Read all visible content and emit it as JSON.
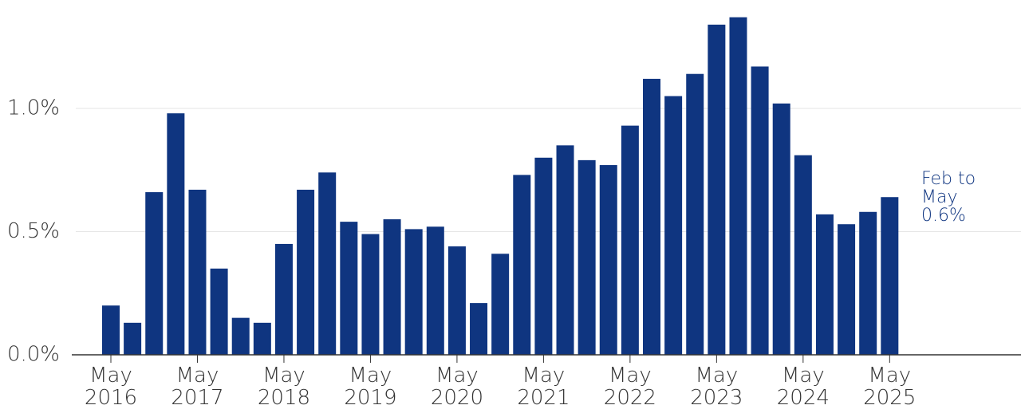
{
  "chart_data": {
    "type": "bar",
    "categories": [
      "May 2016",
      null,
      null,
      null,
      "May 2017",
      null,
      null,
      null,
      "May 2018",
      null,
      null,
      null,
      "May 2019",
      null,
      null,
      null,
      "May 2020",
      null,
      null,
      null,
      "May 2021",
      null,
      null,
      null,
      "May 2022",
      null,
      null,
      null,
      "May 2023",
      null,
      null,
      null,
      "May 2024",
      null,
      null,
      null,
      "May 2025"
    ],
    "values": [
      0.2,
      0.13,
      0.66,
      0.98,
      0.67,
      0.35,
      0.15,
      0.13,
      0.45,
      0.67,
      0.74,
      0.54,
      0.49,
      0.55,
      0.51,
      0.52,
      0.44,
      0.21,
      0.41,
      0.73,
      0.8,
      0.85,
      0.79,
      0.77,
      0.93,
      1.12,
      1.05,
      1.14,
      1.34,
      1.37,
      1.17,
      1.02,
      0.81,
      0.57,
      0.53,
      0.58,
      0.64
    ],
    "color": "#0f3580",
    "ylim": [
      0,
      1.44
    ],
    "yticks": [
      {
        "value": 0,
        "label": "0.0%"
      },
      {
        "value": 0.5,
        "label": "0.5%"
      },
      {
        "value": 1.0,
        "label": "1.0%"
      }
    ],
    "grid": true,
    "annotation": [
      "Feb to",
      "May",
      "0.6%"
    ]
  }
}
